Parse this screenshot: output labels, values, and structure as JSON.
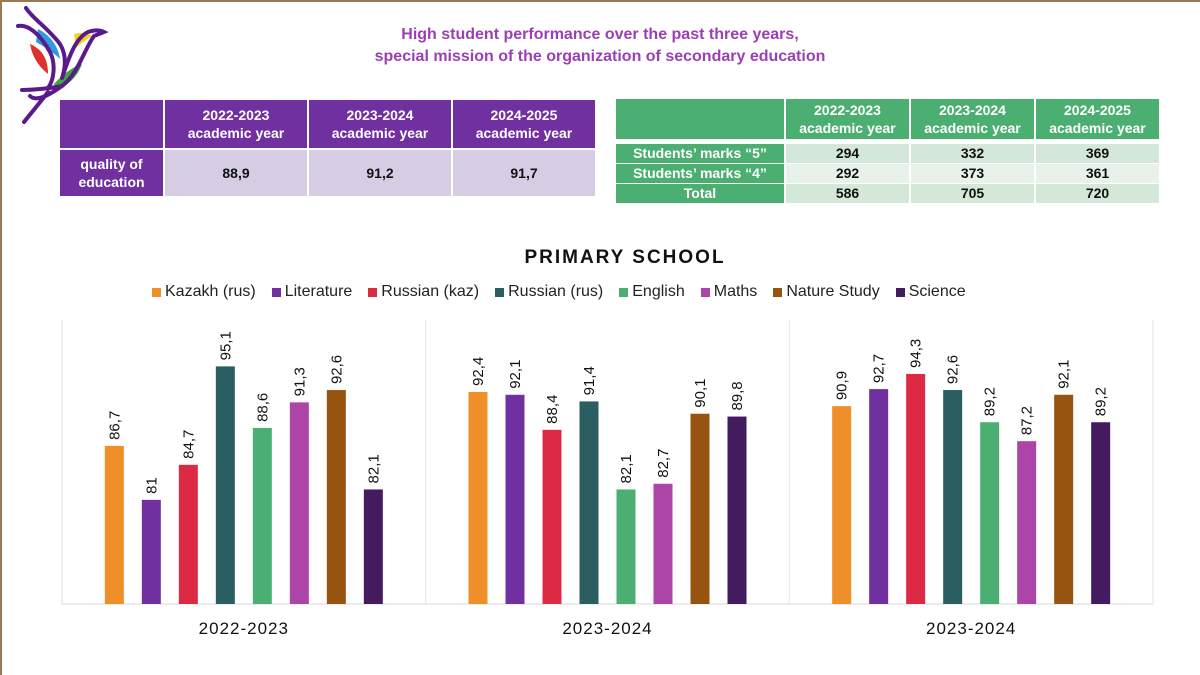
{
  "header": {
    "title_line1": "High student performance over the past three years,",
    "title_line2": "special mission of the organization of secondary education"
  },
  "logo": {
    "name": "bird-logo",
    "colors": [
      "#5b1a8a",
      "#2e9be0",
      "#e03030",
      "#f2d21e",
      "#3fa83a"
    ]
  },
  "quality_table": {
    "headers": [
      {
        "year": "2022-2023",
        "sub": "academic year"
      },
      {
        "year": "2023-2024",
        "sub": "academic year"
      },
      {
        "year": "2024-2025",
        "sub": "academic year"
      }
    ],
    "row_label_line1": "quality of",
    "row_label_line2": "education",
    "values": [
      "88,9",
      "91,2",
      "91,7"
    ]
  },
  "marks_table": {
    "headers": [
      {
        "year": "2022-2023",
        "sub": "academic year"
      },
      {
        "year": "2023-2024",
        "sub": "academic year"
      },
      {
        "year": "2024-2025",
        "sub": "academic year"
      }
    ],
    "rows": [
      {
        "label": "Students’ marks “5”",
        "values": [
          "294",
          "332",
          "369"
        ]
      },
      {
        "label": "Students’ marks “4”",
        "values": [
          "292",
          "373",
          "361"
        ]
      },
      {
        "label": "Total",
        "values": [
          "586",
          "705",
          "720"
        ]
      }
    ]
  },
  "chart_data": {
    "type": "bar",
    "title": "PRIMARY SCHOOL",
    "xlabel": "",
    "ylabel": "",
    "ylim": [
      70,
      100
    ],
    "grid": false,
    "legend_position": "top",
    "categories": [
      "2022-2023",
      "2023-2024",
      "2023-2024"
    ],
    "series": [
      {
        "name": "Kazakh (rus)",
        "color": "#ef8f2a",
        "values": [
          86.7,
          92.4,
          90.9
        ],
        "labels": [
          "86,7",
          "92,4",
          "90,9"
        ]
      },
      {
        "name": "Literature",
        "color": "#7030a0",
        "values": [
          81.0,
          92.1,
          92.7
        ],
        "labels": [
          "81",
          "92,1",
          "92,7"
        ]
      },
      {
        "name": "Russian (kaz)",
        "color": "#dc2a45",
        "values": [
          84.7,
          88.4,
          94.3
        ],
        "labels": [
          "84,7",
          "88,4",
          "94,3"
        ]
      },
      {
        "name": "Russian (rus)",
        "color": "#2b5e60",
        "values": [
          95.1,
          91.4,
          92.6
        ],
        "labels": [
          "95,1",
          "91,4",
          "92,6"
        ]
      },
      {
        "name": "English",
        "color": "#4caf72",
        "values": [
          88.6,
          82.1,
          89.2
        ],
        "labels": [
          "88,6",
          "82,1",
          "89,2"
        ]
      },
      {
        "name": "Maths",
        "color": "#ad45a8",
        "values": [
          91.3,
          82.7,
          87.2
        ],
        "labels": [
          "91,3",
          "82,7",
          "87,2"
        ]
      },
      {
        "name": "Nature Study",
        "color": "#975410",
        "values": [
          92.6,
          90.1,
          92.1
        ],
        "labels": [
          "92,6",
          "90,1",
          "92,1"
        ]
      },
      {
        "name": "Science",
        "color": "#441b5e",
        "values": [
          82.1,
          89.8,
          89.2
        ],
        "labels": [
          "82,1",
          "89,8",
          "89,2"
        ]
      }
    ]
  }
}
